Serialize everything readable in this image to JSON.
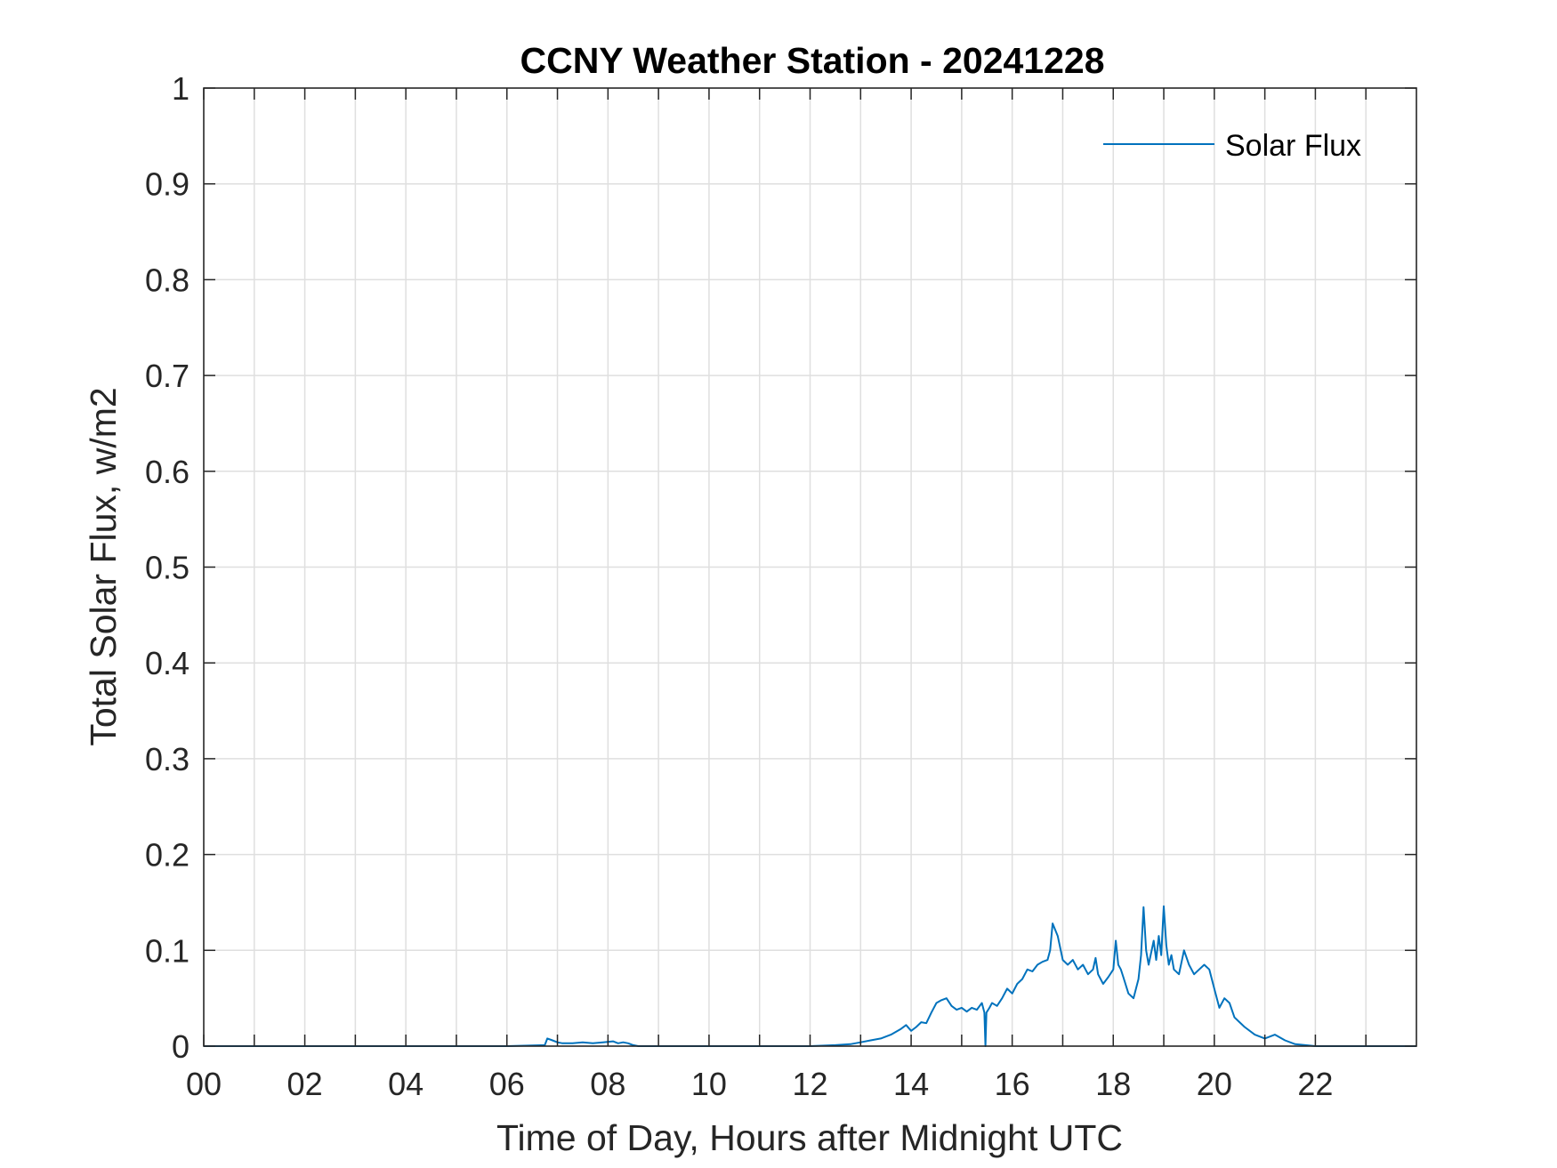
{
  "colors": {
    "series": "#0072bd",
    "axis": "#262626",
    "grid": "#dfdfdf",
    "background": "#ffffff"
  },
  "chart_data": {
    "type": "line",
    "title": "CCNY Weather Station - 20241228",
    "xlabel": "Time of Day, Hours after Midnight UTC",
    "ylabel": "Total Solar Flux, w/m2",
    "xlim": [
      0,
      24
    ],
    "ylim": [
      0,
      1
    ],
    "grid": true,
    "legend": "top-right",
    "xticks": [
      0,
      1,
      2,
      3,
      4,
      5,
      6,
      7,
      8,
      9,
      10,
      11,
      12,
      13,
      14,
      15,
      16,
      17,
      18,
      19,
      20,
      21,
      22,
      23
    ],
    "xtick_labels": [
      "00",
      "",
      "02",
      "",
      "04",
      "",
      "06",
      "",
      "08",
      "",
      "10",
      "",
      "12",
      "",
      "14",
      "",
      "16",
      "",
      "18",
      "",
      "20",
      "",
      "22",
      ""
    ],
    "yticks": [
      0,
      0.1,
      0.2,
      0.3,
      0.4,
      0.5,
      0.6,
      0.7,
      0.8,
      0.9,
      1
    ],
    "ytick_labels": [
      "0",
      "0.1",
      "0.2",
      "0.3",
      "0.4",
      "0.5",
      "0.6",
      "0.7",
      "0.8",
      "0.9",
      "1"
    ],
    "series": [
      {
        "name": "Solar Flux",
        "x": [
          0,
          6.0,
          6.75,
          6.8,
          6.9,
          7.0,
          7.1,
          7.3,
          7.5,
          7.7,
          7.9,
          8.1,
          8.2,
          8.3,
          8.4,
          8.5,
          8.6,
          8.7,
          9.0,
          12.0,
          12.5,
          12.8,
          13.0,
          13.2,
          13.4,
          13.6,
          13.8,
          13.9,
          14.0,
          14.1,
          14.2,
          14.3,
          14.4,
          14.5,
          14.6,
          14.7,
          14.8,
          14.9,
          15.0,
          15.1,
          15.2,
          15.3,
          15.4,
          15.45,
          15.47,
          15.49,
          15.55,
          15.6,
          15.7,
          15.8,
          15.9,
          16.0,
          16.1,
          16.2,
          16.3,
          16.4,
          16.5,
          16.6,
          16.7,
          16.75,
          16.8,
          16.9,
          17.0,
          17.1,
          17.2,
          17.3,
          17.4,
          17.5,
          17.6,
          17.65,
          17.7,
          17.8,
          17.9,
          18.0,
          18.05,
          18.1,
          18.15,
          18.2,
          18.3,
          18.4,
          18.5,
          18.55,
          18.6,
          18.65,
          18.7,
          18.8,
          18.85,
          18.9,
          18.95,
          19.0,
          19.05,
          19.1,
          19.15,
          19.2,
          19.3,
          19.4,
          19.5,
          19.6,
          19.7,
          19.8,
          19.9,
          20.0,
          20.1,
          20.2,
          20.3,
          20.4,
          20.5,
          20.6,
          20.8,
          21.0,
          21.2,
          21.4,
          21.6,
          21.8,
          22.0,
          24.0
        ],
        "y": [
          0,
          0,
          0.001,
          0.008,
          0.006,
          0.004,
          0.003,
          0.003,
          0.004,
          0.003,
          0.004,
          0.005,
          0.003,
          0.004,
          0.003,
          0.001,
          0.0,
          0.0,
          0,
          0,
          0.001,
          0.002,
          0.004,
          0.006,
          0.008,
          0.012,
          0.018,
          0.022,
          0.016,
          0.02,
          0.025,
          0.024,
          0.035,
          0.045,
          0.048,
          0.05,
          0.042,
          0.038,
          0.04,
          0.036,
          0.04,
          0.038,
          0.045,
          0.035,
          0.0,
          0.035,
          0.04,
          0.045,
          0.042,
          0.05,
          0.06,
          0.055,
          0.065,
          0.07,
          0.08,
          0.078,
          0.085,
          0.088,
          0.09,
          0.1,
          0.128,
          0.115,
          0.09,
          0.085,
          0.09,
          0.08,
          0.085,
          0.075,
          0.08,
          0.092,
          0.075,
          0.065,
          0.072,
          0.08,
          0.11,
          0.085,
          0.08,
          0.072,
          0.055,
          0.05,
          0.07,
          0.095,
          0.145,
          0.1,
          0.085,
          0.11,
          0.09,
          0.115,
          0.095,
          0.146,
          0.105,
          0.085,
          0.095,
          0.08,
          0.075,
          0.1,
          0.085,
          0.075,
          0.08,
          0.085,
          0.08,
          0.06,
          0.04,
          0.05,
          0.045,
          0.03,
          0.025,
          0.02,
          0.012,
          0.008,
          0.012,
          0.006,
          0.002,
          0.001,
          0,
          0
        ]
      }
    ]
  }
}
